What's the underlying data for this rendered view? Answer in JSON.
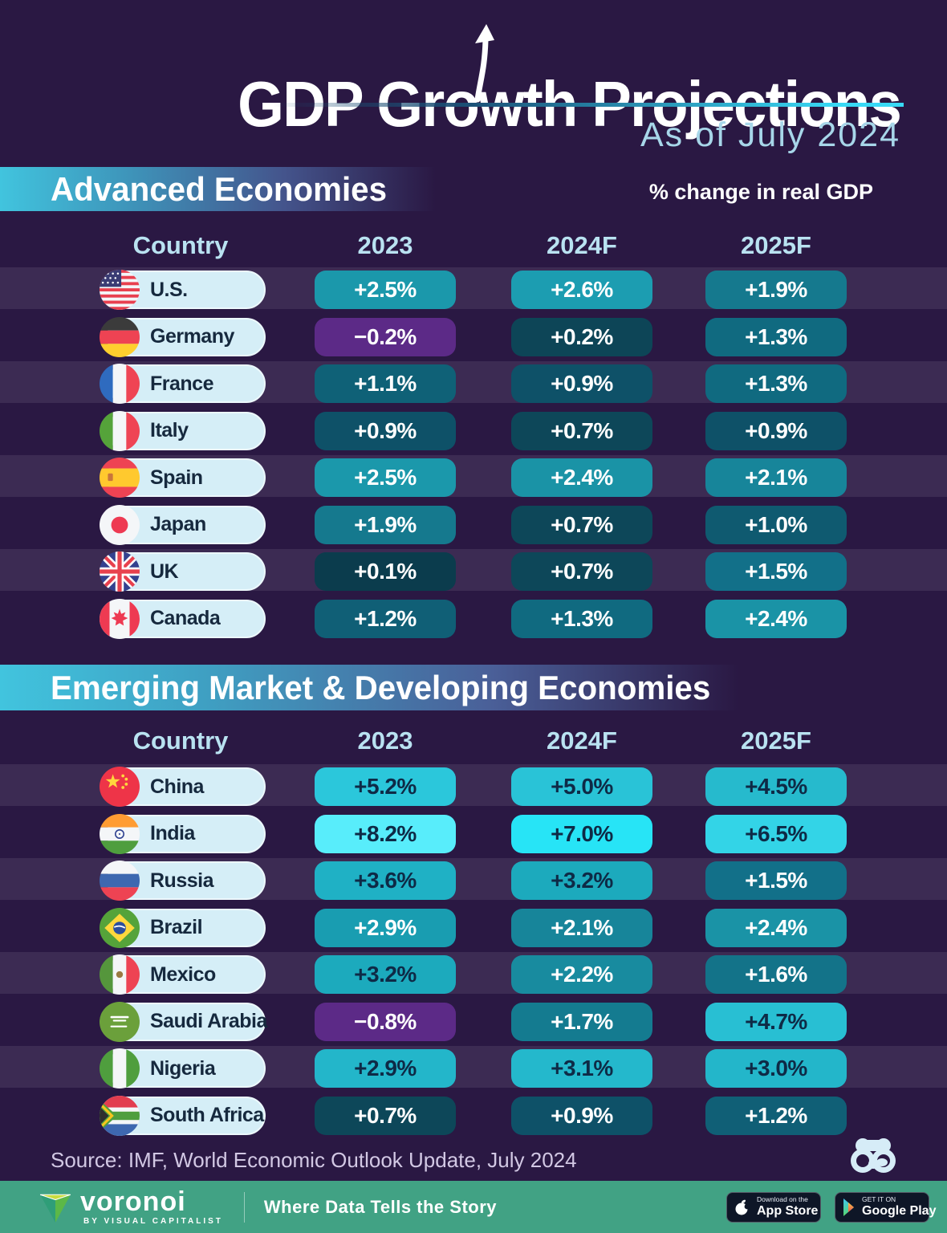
{
  "page": {
    "title": "GDP Growth Projections",
    "subtitle": "As of July 2024",
    "unit_note": "% change in real GDP",
    "source": "Source: IMF, World Economic Outlook Update, July 2024"
  },
  "palette": {
    "page_bg": "#2a1843",
    "stripe_light": "#3c2b53",
    "country_pill_bg": "#d5eef7",
    "header_text": "#b9e2f1",
    "accent_cyan": "#38d9f5",
    "negative_purple": "#5c2a87",
    "footer_green": "#41a284",
    "dark_value_text": "#0e2a46"
  },
  "columns": [
    "Country",
    "2023",
    "2024F",
    "2025F"
  ],
  "sections": [
    {
      "title": "Advanced Economies",
      "rows": [
        {
          "country": "U.S.",
          "flag": "us",
          "values": [
            {
              "v": "+2.5%",
              "bg": "#1b98ab",
              "fg": "#ffffff"
            },
            {
              "v": "+2.6%",
              "bg": "#1c9db1",
              "fg": "#ffffff"
            },
            {
              "v": "+1.9%",
              "bg": "#15798e",
              "fg": "#ffffff"
            }
          ]
        },
        {
          "country": "Germany",
          "flag": "de",
          "values": [
            {
              "v": "−0.2%",
              "bg": "#5c2a87",
              "fg": "#ffffff"
            },
            {
              "v": "+0.2%",
              "bg": "#0d4557",
              "fg": "#ffffff"
            },
            {
              "v": "+1.3%",
              "bg": "#106a80",
              "fg": "#ffffff"
            }
          ]
        },
        {
          "country": "France",
          "flag": "fr",
          "values": [
            {
              "v": "+1.1%",
              "bg": "#0f6177",
              "fg": "#ffffff"
            },
            {
              "v": "+0.9%",
              "bg": "#0e5168",
              "fg": "#ffffff"
            },
            {
              "v": "+1.3%",
              "bg": "#106a80",
              "fg": "#ffffff"
            }
          ]
        },
        {
          "country": "Italy",
          "flag": "it",
          "values": [
            {
              "v": "+0.9%",
              "bg": "#0e5168",
              "fg": "#ffffff"
            },
            {
              "v": "+0.7%",
              "bg": "#0d4759",
              "fg": "#ffffff"
            },
            {
              "v": "+0.9%",
              "bg": "#0e5168",
              "fg": "#ffffff"
            }
          ]
        },
        {
          "country": "Spain",
          "flag": "es",
          "values": [
            {
              "v": "+2.5%",
              "bg": "#1b98ab",
              "fg": "#ffffff"
            },
            {
              "v": "+2.4%",
              "bg": "#1a93a6",
              "fg": "#ffffff"
            },
            {
              "v": "+2.1%",
              "bg": "#17859a",
              "fg": "#ffffff"
            }
          ]
        },
        {
          "country": "Japan",
          "flag": "jp",
          "values": [
            {
              "v": "+1.9%",
              "bg": "#15798e",
              "fg": "#ffffff"
            },
            {
              "v": "+0.7%",
              "bg": "#0d4759",
              "fg": "#ffffff"
            },
            {
              "v": "+1.0%",
              "bg": "#0f5a70",
              "fg": "#ffffff"
            }
          ]
        },
        {
          "country": "UK",
          "flag": "uk",
          "values": [
            {
              "v": "+0.1%",
              "bg": "#0b3c4d",
              "fg": "#ffffff"
            },
            {
              "v": "+0.7%",
              "bg": "#0d4759",
              "fg": "#ffffff"
            },
            {
              "v": "+1.5%",
              "bg": "#127089",
              "fg": "#ffffff"
            }
          ]
        },
        {
          "country": "Canada",
          "flag": "ca",
          "values": [
            {
              "v": "+1.2%",
              "bg": "#105f76",
              "fg": "#ffffff"
            },
            {
              "v": "+1.3%",
              "bg": "#106a80",
              "fg": "#ffffff"
            },
            {
              "v": "+2.4%",
              "bg": "#1a93a6",
              "fg": "#ffffff"
            }
          ]
        }
      ]
    },
    {
      "title": "Emerging Market & Developing Economies",
      "rows": [
        {
          "country": "China",
          "flag": "cn",
          "values": [
            {
              "v": "+5.2%",
              "bg": "#2bc7db",
              "fg": "#0e2a46"
            },
            {
              "v": "+5.0%",
              "bg": "#29c3d7",
              "fg": "#0e2a46"
            },
            {
              "v": "+4.5%",
              "bg": "#26bacd",
              "fg": "#0e2a46"
            }
          ]
        },
        {
          "country": "India",
          "flag": "in",
          "values": [
            {
              "v": "+8.2%",
              "bg": "#58edfb",
              "fg": "#0e2a46"
            },
            {
              "v": "+7.0%",
              "bg": "#27e4f6",
              "fg": "#0e2a46"
            },
            {
              "v": "+6.5%",
              "bg": "#33d4e7",
              "fg": "#0e2a46"
            }
          ]
        },
        {
          "country": "Russia",
          "flag": "ru",
          "values": [
            {
              "v": "+3.6%",
              "bg": "#1fb1c5",
              "fg": "#0e2a46"
            },
            {
              "v": "+3.2%",
              "bg": "#1caabd",
              "fg": "#0e2a46"
            },
            {
              "v": "+1.5%",
              "bg": "#127089",
              "fg": "#ffffff"
            }
          ]
        },
        {
          "country": "Brazil",
          "flag": "br",
          "values": [
            {
              "v": "+2.9%",
              "bg": "#199db1",
              "fg": "#ffffff"
            },
            {
              "v": "+2.1%",
              "bg": "#17859a",
              "fg": "#ffffff"
            },
            {
              "v": "+2.4%",
              "bg": "#1a93a6",
              "fg": "#ffffff"
            }
          ]
        },
        {
          "country": "Mexico",
          "flag": "mx",
          "values": [
            {
              "v": "+3.2%",
              "bg": "#1caabd",
              "fg": "#0e2a46"
            },
            {
              "v": "+2.2%",
              "bg": "#188b9f",
              "fg": "#ffffff"
            },
            {
              "v": "+1.6%",
              "bg": "#137389",
              "fg": "#ffffff"
            }
          ]
        },
        {
          "country": "Saudi Arabia",
          "flag": "sa",
          "values": [
            {
              "v": "−0.8%",
              "bg": "#5c2a87",
              "fg": "#ffffff"
            },
            {
              "v": "+1.7%",
              "bg": "#147b90",
              "fg": "#ffffff"
            },
            {
              "v": "+4.7%",
              "bg": "#28bfd3",
              "fg": "#0e2a46"
            }
          ]
        },
        {
          "country": "Nigeria",
          "flag": "ng",
          "values": [
            {
              "v": "+2.9%",
              "bg": "#23b6ca",
              "fg": "#0e2a46"
            },
            {
              "v": "+3.1%",
              "bg": "#24b8cc",
              "fg": "#0e2a46"
            },
            {
              "v": "+3.0%",
              "bg": "#23b6ca",
              "fg": "#0e2a46"
            }
          ]
        },
        {
          "country": "South Africa",
          "flag": "za",
          "values": [
            {
              "v": "+0.7%",
              "bg": "#0d4759",
              "fg": "#ffffff"
            },
            {
              "v": "+0.9%",
              "bg": "#0e5168",
              "fg": "#ffffff"
            },
            {
              "v": "+1.2%",
              "bg": "#105f76",
              "fg": "#ffffff"
            }
          ]
        }
      ]
    }
  ],
  "chart_data": [
    {
      "type": "table",
      "title": "Advanced Economies",
      "columns": [
        "Country",
        "2023",
        "2024F",
        "2025F"
      ],
      "unit": "% change in real GDP",
      "rows": [
        [
          "U.S.",
          2.5,
          2.6,
          1.9
        ],
        [
          "Germany",
          -0.2,
          0.2,
          1.3
        ],
        [
          "France",
          1.1,
          0.9,
          1.3
        ],
        [
          "Italy",
          0.9,
          0.7,
          0.9
        ],
        [
          "Spain",
          2.5,
          2.4,
          2.1
        ],
        [
          "Japan",
          1.9,
          0.7,
          1.0
        ],
        [
          "UK",
          0.1,
          0.7,
          1.5
        ],
        [
          "Canada",
          1.2,
          1.3,
          2.4
        ]
      ]
    },
    {
      "type": "table",
      "title": "Emerging Market & Developing Economies",
      "columns": [
        "Country",
        "2023",
        "2024F",
        "2025F"
      ],
      "unit": "% change in real GDP",
      "rows": [
        [
          "China",
          5.2,
          5.0,
          4.5
        ],
        [
          "India",
          8.2,
          7.0,
          6.5
        ],
        [
          "Russia",
          3.6,
          3.2,
          1.5
        ],
        [
          "Brazil",
          2.9,
          2.1,
          2.4
        ],
        [
          "Mexico",
          3.2,
          2.2,
          1.6
        ],
        [
          "Saudi Arabia",
          -0.8,
          1.7,
          4.7
        ],
        [
          "Nigeria",
          2.9,
          3.1,
          3.0
        ],
        [
          "South Africa",
          0.7,
          0.9,
          1.2
        ]
      ]
    }
  ],
  "footer": {
    "brand": "voronoi",
    "brand_sub": "BY VISUAL CAPITALIST",
    "tagline": "Where Data Tells the Story",
    "appstore": {
      "small": "Download on the",
      "big": "App Store"
    },
    "gplay": {
      "small": "GET IT ON",
      "big": "Google Play"
    }
  }
}
